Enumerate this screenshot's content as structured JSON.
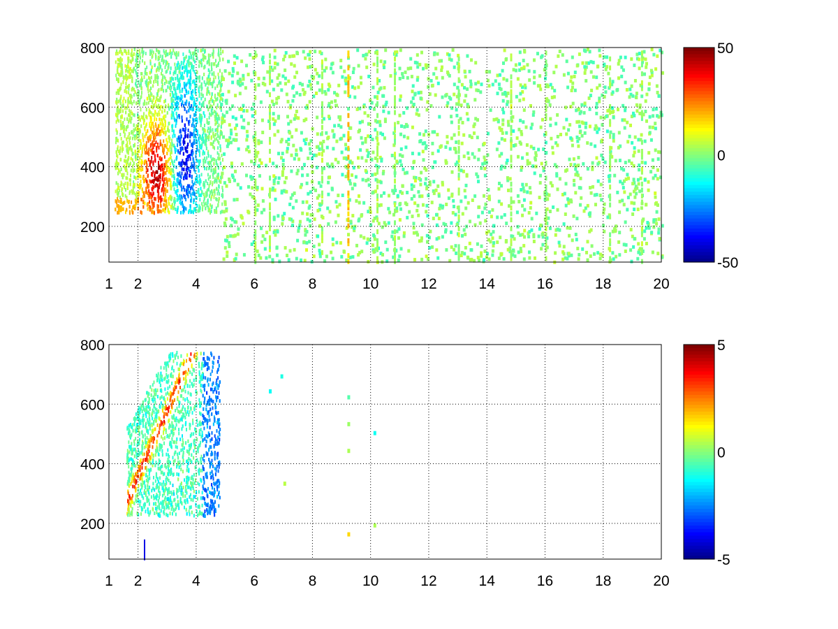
{
  "figure": {
    "background": "#ffffff",
    "colormap": "jet"
  },
  "chart_data": [
    {
      "type": "heatmap",
      "title": "",
      "xlabel": "",
      "ylabel": "",
      "xlim": [
        1,
        20
      ],
      "ylim": [
        80,
        800
      ],
      "x_ticks": [
        1,
        2,
        4,
        6,
        8,
        10,
        12,
        14,
        16,
        18,
        20
      ],
      "x_tick_labels": [
        "1",
        "2",
        "4",
        "6",
        "8",
        "10",
        "12",
        "14",
        "16",
        "18",
        "20"
      ],
      "y_ticks": [
        200,
        400,
        600,
        800
      ],
      "y_tick_labels": [
        "200",
        "400",
        "600",
        "800"
      ],
      "grid": true,
      "colorbar": {
        "min": -50,
        "max": 50,
        "tick_labels": [
          "50",
          "0",
          "-50"
        ],
        "ticks": [
          50,
          0,
          -50
        ]
      },
      "features": [
        {
          "description": "dense high-amplitude field",
          "x": [
            1.3,
            4.8
          ],
          "y": [
            250,
            800
          ],
          "value_range": [
            -50,
            50
          ]
        },
        {
          "description": "positive (red) maximum",
          "x": [
            2.6,
            2.6
          ],
          "y": [
            380,
            380
          ],
          "value": 45
        },
        {
          "description": "negative (blue) band",
          "x": [
            3.6,
            3.6
          ],
          "y": [
            450,
            450
          ],
          "value": -40
        },
        {
          "description": "sparse near-zero scatter",
          "x": [
            4.8,
            20
          ],
          "y": [
            80,
            800
          ],
          "value_range": [
            -10,
            10
          ]
        }
      ]
    },
    {
      "type": "heatmap",
      "title": "",
      "xlabel": "",
      "ylabel": "",
      "xlim": [
        1,
        20
      ],
      "ylim": [
        80,
        800
      ],
      "x_ticks": [
        1,
        2,
        4,
        6,
        8,
        10,
        12,
        14,
        16,
        18,
        20
      ],
      "x_tick_labels": [
        "1",
        "2",
        "4",
        "6",
        "8",
        "10",
        "12",
        "14",
        "16",
        "18",
        "20"
      ],
      "y_ticks": [
        200,
        400,
        600,
        800
      ],
      "y_tick_labels": [
        "200",
        "400",
        "600",
        "800"
      ],
      "grid": true,
      "colorbar": {
        "min": -5,
        "max": 5,
        "tick_labels": [
          "5",
          "0",
          "-5"
        ],
        "ticks": [
          5,
          0,
          -5
        ]
      },
      "features": [
        {
          "description": "main cluster",
          "x": [
            1.6,
            4.8
          ],
          "y": [
            230,
            780
          ],
          "value_range": [
            -5,
            5
          ]
        },
        {
          "description": "positive (red) ridge",
          "x": [
            3.3,
            3.8
          ],
          "y": [
            420,
            750
          ],
          "value": 4
        },
        {
          "description": "isolated points",
          "points": [
            [
              6.5,
              650
            ],
            [
              6.9,
              700
            ],
            [
              7.0,
              340
            ],
            [
              9.2,
              630
            ],
            [
              9.2,
              540
            ],
            [
              9.2,
              450
            ],
            [
              9.2,
              170
            ],
            [
              10.1,
              510
            ],
            [
              10.1,
              200
            ]
          ]
        }
      ]
    }
  ]
}
